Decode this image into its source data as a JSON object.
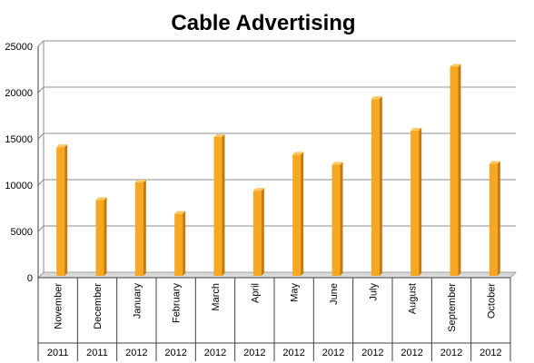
{
  "chart_data": {
    "type": "bar",
    "title": "Cable Advertising",
    "xlabel": "",
    "ylabel": "",
    "ylim": [
      0,
      25000
    ],
    "yticks": [
      0,
      5000,
      10000,
      15000,
      20000,
      25000
    ],
    "grid": true,
    "legend": "none",
    "categories": [
      {
        "month": "November",
        "year": "2011"
      },
      {
        "month": "December",
        "year": "2011"
      },
      {
        "month": "January",
        "year": "2012"
      },
      {
        "month": "February",
        "year": "2012"
      },
      {
        "month": "March",
        "year": "2012"
      },
      {
        "month": "April",
        "year": "2012"
      },
      {
        "month": "May",
        "year": "2012"
      },
      {
        "month": "June",
        "year": "2012"
      },
      {
        "month": "July",
        "year": "2012"
      },
      {
        "month": "August",
        "year": "2012"
      },
      {
        "month": "September",
        "year": "2012"
      },
      {
        "month": "October",
        "year": "2012"
      }
    ],
    "values": [
      14100,
      8400,
      10300,
      6900,
      15200,
      9400,
      13300,
      12200,
      19300,
      15900,
      22800,
      12300
    ],
    "bar_color": "#F7A823",
    "bar_side_color": "#C47A0E",
    "bar_top_color": "#FBC964"
  }
}
